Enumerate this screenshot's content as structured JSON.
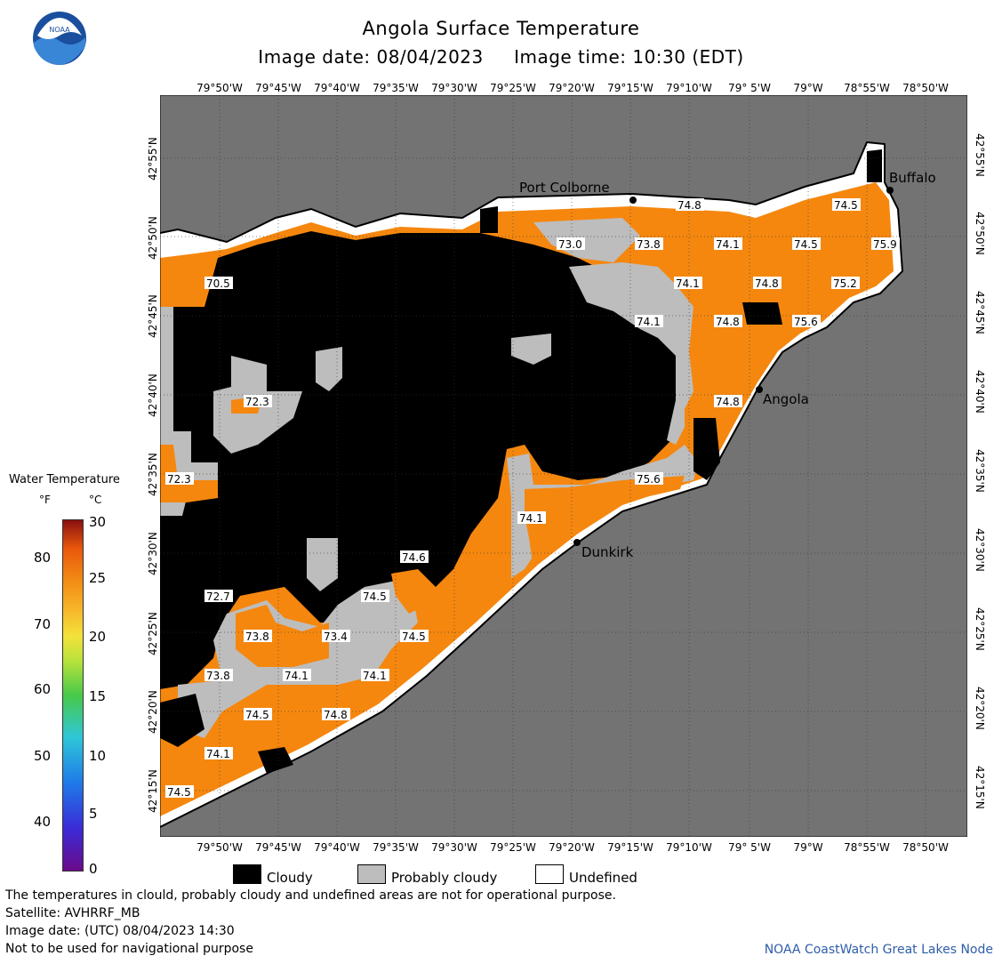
{
  "header": {
    "title": "Angola Surface Temperature",
    "subtitle_date": "Image date: 08/04/2023",
    "subtitle_time": "Image time: 10:30 (EDT)",
    "logo_text": "NOAA"
  },
  "map": {
    "lon_labels": [
      "79°50'W",
      "79°45'W",
      "79°40'W",
      "79°35'W",
      "79°30'W",
      "79°25'W",
      "79°20'W",
      "79°15'W",
      "79°10'W",
      "79° 5'W",
      "79°W",
      "78°55'W",
      "78°50'W"
    ],
    "lat_labels": [
      "42°55'N",
      "42°50'N",
      "42°45'N",
      "42°40'N",
      "42°35'N",
      "42°30'N",
      "42°25'N",
      "42°20'N",
      "42°15'N"
    ],
    "cities": [
      {
        "name": "Port Colborne"
      },
      {
        "name": "Buffalo"
      },
      {
        "name": "Angola"
      },
      {
        "name": "Dunkirk"
      }
    ],
    "temperatures": [
      "74.8",
      "74.5",
      "73.0",
      "73.8",
      "74.1",
      "74.5",
      "75.9",
      "70.5",
      "74.1",
      "74.8",
      "75.2",
      "74.1",
      "74.8",
      "75.6",
      "72.3",
      "74.8",
      "72.3",
      "75.6",
      "74.1",
      "74.6",
      "72.7",
      "74.5",
      "73.8",
      "73.4",
      "74.5",
      "73.8",
      "74.1",
      "74.1",
      "74.5",
      "74.8",
      "74.1",
      "74.5"
    ],
    "colors": {
      "land": "#737373",
      "cloudy": "#000000",
      "probably_cloudy": "#bdbdbd",
      "undefined": "#ffffff",
      "water": "#f5870f"
    }
  },
  "legend": {
    "title": "Water Temperature",
    "unit_f": "°F",
    "unit_c": "°C",
    "f_ticks": [
      "80",
      "70",
      "60",
      "50",
      "40"
    ],
    "c_ticks": [
      "30",
      "25",
      "20",
      "15",
      "10",
      "5",
      "0"
    ],
    "key_cloudy": "Cloudy",
    "key_probably_cloudy": "Probably cloudy",
    "key_undefined": "Undefined"
  },
  "footer": {
    "line1": "The temperatures in clould, probably cloudy and undefined areas are not for operational purpose.",
    "line2": "Satellite: AVHRRF_MB",
    "line3": "Image date: (UTC) 08/04/2023  14:30",
    "line4": "Not to be used for navigational purpose",
    "credit": "NOAA CoastWatch Great Lakes Node"
  }
}
